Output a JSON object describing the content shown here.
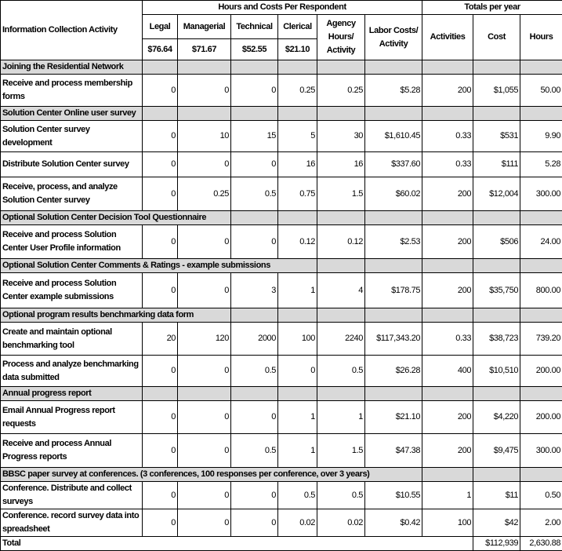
{
  "header": {
    "activity_col": "Information Collection Activity",
    "group_hours": "Hours and Costs Per Respondent",
    "group_totals": "Totals per year",
    "legal": "Legal",
    "managerial": "Managerial",
    "technical": "Technical",
    "clerical": "Clerical",
    "agency_hours": "Agency Hours/ Activity",
    "labor_costs": "Labor Costs/ Activity",
    "activities": "Activities",
    "cost": "Cost",
    "hours": "Hours",
    "rate_legal": "$76.64",
    "rate_managerial": "$71.67",
    "rate_technical": "$52.55",
    "rate_clerical": "$21.10"
  },
  "sections": [
    {
      "title": "Joining the Residential Network",
      "rows": [
        [
          "Receive and process membership forms",
          "0",
          "0",
          "0",
          "0.25",
          "0.25",
          "$5.28",
          "200",
          "$1,055",
          "50.00"
        ]
      ]
    },
    {
      "title": "Solution Center Online user survey",
      "rows": [
        [
          "Solution Center survey development",
          "0",
          "10",
          "15",
          "5",
          "30",
          "$1,610.45",
          "0.33",
          "$531",
          "9.90"
        ],
        [
          "Distribute Solution Center survey",
          "0",
          "0",
          "0",
          "16",
          "16",
          "$337.60",
          "0.33",
          "$111",
          "5.28"
        ],
        [
          "Receive, process, and analyze Solution Center survey",
          "0",
          "0.25",
          "0.5",
          "0.75",
          "1.5",
          "$60.02",
          "200",
          "$12,004",
          "300.00"
        ]
      ]
    },
    {
      "title": "Optional Solution Center Decision Tool Questionnaire",
      "rows": [
        [
          "Receive and process Solution Center User Profile information",
          "0",
          "0",
          "0",
          "0.12",
          "0.12",
          "$2.53",
          "200",
          "$506",
          "24.00"
        ]
      ]
    },
    {
      "title": "Optional Solution Center Comments & Ratings - example submissions",
      "rows": [
        [
          "Receive and process Solution Center example submissions",
          "0",
          "0",
          "3",
          "1",
          "4",
          "$178.75",
          "200",
          "$35,750",
          "800.00"
        ]
      ]
    },
    {
      "title": "Optional program results benchmarking data form",
      "rows": [
        [
          "Create and maintain optional benchmarking tool",
          "20",
          "120",
          "2000",
          "100",
          "2240",
          "$117,343.20",
          "0.33",
          "$38,723",
          "739.20"
        ],
        [
          "Process and analyze benchmarking data submitted",
          "0",
          "0",
          "0.5",
          "0",
          "0.5",
          "$26.28",
          "400",
          "$10,510",
          "200.00"
        ]
      ]
    },
    {
      "title": "Annual progress report",
      "rows": [
        [
          "Email Annual Progress report requests",
          "0",
          "0",
          "0",
          "1",
          "1",
          "$21.10",
          "200",
          "$4,220",
          "200.00"
        ],
        [
          "Receive and process Annual Progress reports",
          "0",
          "0",
          "0.5",
          "1",
          "1.5",
          "$47.38",
          "200",
          "$9,475",
          "300.00"
        ]
      ]
    },
    {
      "title": "BBSC paper survey at conferences.  (3 conferences, 100 responses per conference, over 3 years)",
      "rows": [
        [
          "Conference.  Distribute and collect surveys",
          "0",
          "0",
          "0",
          "0.5",
          "0.5",
          "$10.55",
          "1",
          "$11",
          "0.50"
        ],
        [
          "Conference. record survey data into spreadsheet",
          "0",
          "0",
          "0",
          "0.02",
          "0.02",
          "$0.42",
          "100",
          "$42",
          "2.00"
        ]
      ]
    }
  ],
  "total": {
    "label": "Total",
    "cost": "$112,939",
    "hours": "2,630.88"
  }
}
